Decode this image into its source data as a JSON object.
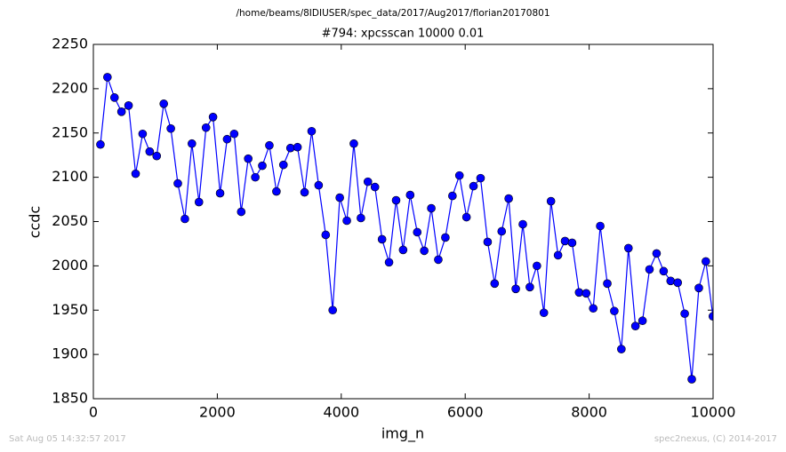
{
  "chart_data": {
    "type": "line",
    "suptitle": "/home/beams/8IDIUSER/spec_data/2017/Aug2017/florian20170801",
    "title": "#794: xpcsscan 10000 0.01",
    "xlabel": "img_n",
    "ylabel": "ccdc",
    "footer_left": "Sat Aug 05 14:32:57 2017",
    "footer_right": "spec2nexus, (C) 2014-2017",
    "x": [
      114,
      227,
      341,
      454,
      568,
      682,
      795,
      909,
      1022,
      1136,
      1250,
      1363,
      1477,
      1590,
      1704,
      1818,
      1931,
      2045,
      2158,
      2272,
      2386,
      2499,
      2613,
      2726,
      2840,
      2954,
      3067,
      3181,
      3294,
      3408,
      3522,
      3635,
      3749,
      3862,
      3976,
      4090,
      4203,
      4317,
      4430,
      4544,
      4658,
      4771,
      4885,
      4998,
      5112,
      5226,
      5339,
      5453,
      5566,
      5680,
      5794,
      5907,
      6021,
      6134,
      6248,
      6362,
      6475,
      6589,
      6702,
      6816,
      6930,
      7043,
      7157,
      7270,
      7384,
      7498,
      7611,
      7725,
      7838,
      7952,
      8066,
      8179,
      8293,
      8406,
      8520,
      8634,
      8747,
      8861,
      8974,
      9088,
      9202,
      9315,
      9429,
      9542,
      9656,
      9770,
      9883,
      9997
    ],
    "series": [
      {
        "color": "#0000ff",
        "values": [
          2137,
          2213,
          2190,
          2174,
          2181,
          2104,
          2149,
          2129,
          2124,
          2183,
          2155,
          2093,
          2053,
          2138,
          2072,
          2156,
          2168,
          2082,
          2143,
          2149,
          2061,
          2121,
          2100,
          2113,
          2136,
          2084,
          2114,
          2133,
          2134,
          2083,
          2152,
          2091,
          2035,
          1950,
          2077,
          2051,
          2138,
          2054,
          2095,
          2089,
          2030,
          2004,
          2074,
          2018,
          2080,
          2038,
          2017,
          2065,
          2007,
          2032,
          2079,
          2102,
          2055,
          2090,
          2099,
          2027,
          1980,
          2039,
          2076,
          1974,
          2047,
          1976,
          2000,
          1947,
          2073,
          2012,
          2028,
          2026,
          1970,
          1969,
          1952,
          2045,
          1980,
          1949,
          1906,
          2020,
          1932,
          1938,
          1996,
          2014,
          1994,
          1983,
          1981,
          1946,
          1872,
          1975,
          2005,
          1943
        ]
      }
    ],
    "xlim": [
      0,
      10000
    ],
    "xticks": [
      0,
      2000,
      4000,
      6000,
      8000,
      10000
    ],
    "ylim": [
      1850,
      2250
    ],
    "yticks": [
      1850,
      1900,
      1950,
      2000,
      2050,
      2100,
      2150,
      2200,
      2250
    ],
    "grid": false
  }
}
